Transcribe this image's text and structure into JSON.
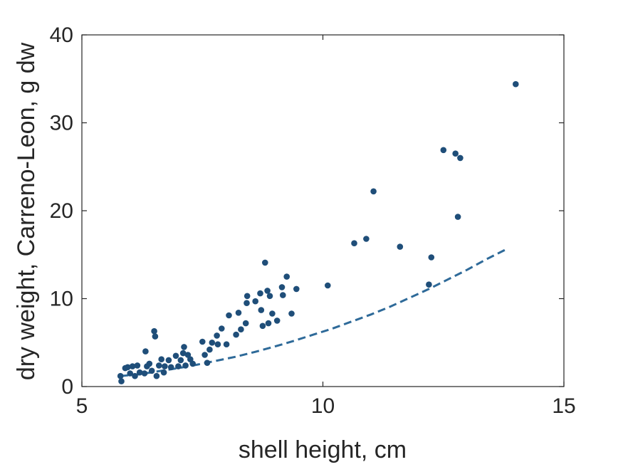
{
  "chart_data": {
    "type": "scatter",
    "title": "",
    "xlabel": "shell height, cm",
    "ylabel": "dry weight, Carreno-Leon, g dw",
    "xlim": [
      5,
      15
    ],
    "ylim": [
      0,
      40
    ],
    "x_ticks": [
      "5",
      "10",
      "15"
    ],
    "y_ticks": [
      "0",
      "10",
      "20",
      "30",
      "40"
    ],
    "grid": false,
    "legend": "none",
    "colors": {
      "points": "#1f4e79",
      "fit_line": "#2e6a99",
      "axis": "#262626"
    },
    "series": [
      {
        "kind": "points",
        "points": [
          [
            5.8,
            1.2
          ],
          [
            5.82,
            0.6
          ],
          [
            5.9,
            2.1
          ],
          [
            5.95,
            2.2
          ],
          [
            6.0,
            1.5
          ],
          [
            6.05,
            2.3
          ],
          [
            6.1,
            1.2
          ],
          [
            6.15,
            2.4
          ],
          [
            6.2,
            1.6
          ],
          [
            6.3,
            1.5
          ],
          [
            6.32,
            4.0
          ],
          [
            6.35,
            2.3
          ],
          [
            6.4,
            2.6
          ],
          [
            6.45,
            1.8
          ],
          [
            6.5,
            6.3
          ],
          [
            6.52,
            5.7
          ],
          [
            6.55,
            1.2
          ],
          [
            6.6,
            2.4
          ],
          [
            6.65,
            3.1
          ],
          [
            6.7,
            1.6
          ],
          [
            6.72,
            2.3
          ],
          [
            6.8,
            3.0
          ],
          [
            6.85,
            2.2
          ],
          [
            6.95,
            3.5
          ],
          [
            7.0,
            2.3
          ],
          [
            7.05,
            3.0
          ],
          [
            7.1,
            3.8
          ],
          [
            7.12,
            4.5
          ],
          [
            7.15,
            2.4
          ],
          [
            7.2,
            3.6
          ],
          [
            7.25,
            3.1
          ],
          [
            7.3,
            2.6
          ],
          [
            7.5,
            5.1
          ],
          [
            7.55,
            3.6
          ],
          [
            7.6,
            2.7
          ],
          [
            7.65,
            4.2
          ],
          [
            7.7,
            5.0
          ],
          [
            7.8,
            5.8
          ],
          [
            7.82,
            4.8
          ],
          [
            7.9,
            6.6
          ],
          [
            8.0,
            4.8
          ],
          [
            8.05,
            8.1
          ],
          [
            8.2,
            5.9
          ],
          [
            8.25,
            8.4
          ],
          [
            8.3,
            6.5
          ],
          [
            8.4,
            7.2
          ],
          [
            8.42,
            9.5
          ],
          [
            8.43,
            10.3
          ],
          [
            8.6,
            9.7
          ],
          [
            8.7,
            10.6
          ],
          [
            8.72,
            8.7
          ],
          [
            8.75,
            6.9
          ],
          [
            8.8,
            14.1
          ],
          [
            8.85,
            10.9
          ],
          [
            8.87,
            7.2
          ],
          [
            8.9,
            10.3
          ],
          [
            8.95,
            8.3
          ],
          [
            9.05,
            7.5
          ],
          [
            9.15,
            11.3
          ],
          [
            9.17,
            10.4
          ],
          [
            9.25,
            12.5
          ],
          [
            9.35,
            8.3
          ],
          [
            9.45,
            11.1
          ],
          [
            10.1,
            11.5
          ],
          [
            10.65,
            16.3
          ],
          [
            10.9,
            16.8
          ],
          [
            11.05,
            22.2
          ],
          [
            11.6,
            15.9
          ],
          [
            12.2,
            11.6
          ],
          [
            12.25,
            14.7
          ],
          [
            12.5,
            26.9
          ],
          [
            12.75,
            26.5
          ],
          [
            12.8,
            19.3
          ],
          [
            12.85,
            26.0
          ],
          [
            14.0,
            34.4
          ]
        ]
      },
      {
        "kind": "fit_line",
        "points": [
          [
            5.8,
            1.2
          ],
          [
            6.2,
            1.4
          ],
          [
            6.6,
            1.75
          ],
          [
            7.0,
            2.1
          ],
          [
            7.4,
            2.5
          ],
          [
            7.8,
            2.95
          ],
          [
            8.2,
            3.4
          ],
          [
            8.6,
            3.95
          ],
          [
            9.0,
            4.55
          ],
          [
            9.4,
            5.2
          ],
          [
            9.8,
            5.9
          ],
          [
            10.2,
            6.6
          ],
          [
            10.6,
            7.4
          ],
          [
            11.0,
            8.2
          ],
          [
            11.4,
            9.1
          ],
          [
            11.8,
            10.1
          ],
          [
            12.2,
            11.1
          ],
          [
            12.6,
            12.2
          ],
          [
            13.0,
            13.3
          ],
          [
            13.4,
            14.5
          ],
          [
            13.8,
            15.6
          ]
        ]
      }
    ]
  }
}
